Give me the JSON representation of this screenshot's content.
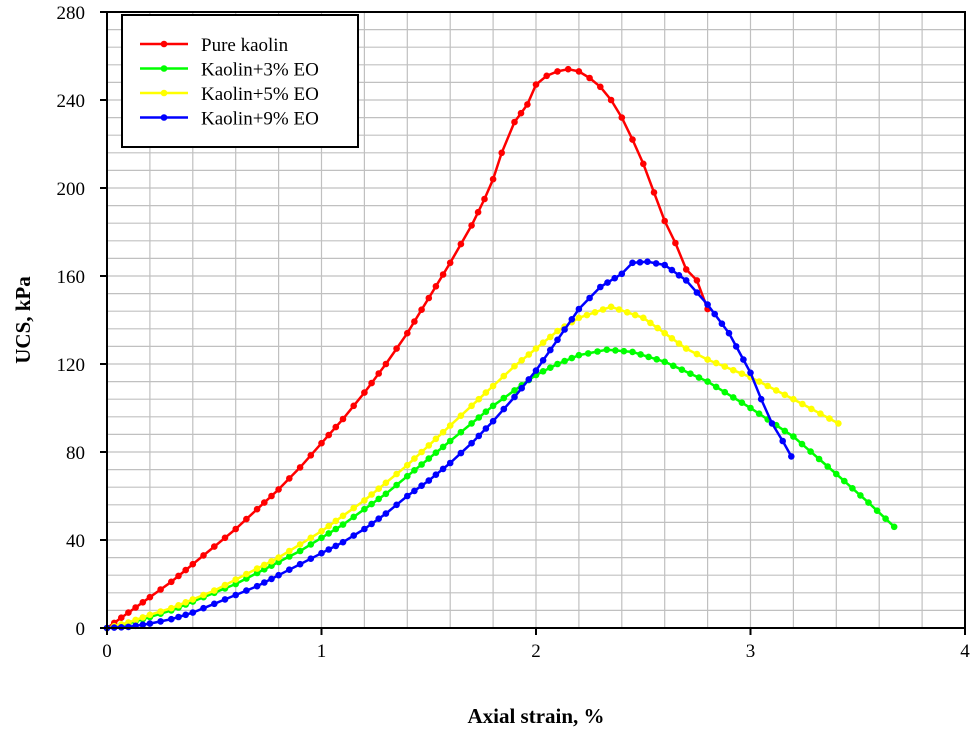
{
  "chart_data": {
    "type": "line",
    "title": "",
    "xlabel": "Axial strain, %",
    "ylabel": "UCS, kPa",
    "xlim": [
      0,
      4
    ],
    "ylim": [
      0,
      280
    ],
    "x_ticks": [
      0,
      1,
      2,
      3,
      4
    ],
    "y_ticks": [
      0,
      40,
      80,
      120,
      160,
      200,
      240,
      280
    ],
    "x_minor_step": 0.2,
    "y_minor_step": 8,
    "grid": true,
    "legend_position": "upper-left",
    "series": [
      {
        "name": "Pure kaolin",
        "color": "#ff0000",
        "x": [
          0,
          0.1,
          0.2,
          0.3,
          0.4,
          0.5,
          0.6,
          0.7,
          0.8,
          0.9,
          1.0,
          1.1,
          1.2,
          1.3,
          1.4,
          1.5,
          1.6,
          1.7,
          1.76,
          1.8,
          1.84,
          1.9,
          1.96,
          2.0,
          2.05,
          2.1,
          2.15,
          2.2,
          2.25,
          2.3,
          2.35,
          2.4,
          2.45,
          2.5,
          2.55,
          2.6,
          2.65,
          2.7,
          2.75,
          2.8
        ],
        "y": [
          0,
          7,
          14,
          21,
          29,
          37,
          45,
          54,
          63,
          73,
          84,
          95,
          107,
          120,
          134,
          150,
          166,
          183,
          195,
          204,
          216,
          230,
          238,
          247,
          251,
          253,
          254,
          253,
          250,
          246,
          240,
          232,
          222,
          211,
          198,
          185,
          175,
          163,
          158,
          145
        ]
      },
      {
        "name": "Kaolin+3% EO",
        "color": "#00ff00",
        "x": [
          0,
          0.1,
          0.2,
          0.3,
          0.4,
          0.5,
          0.6,
          0.7,
          0.8,
          0.9,
          1.0,
          1.1,
          1.2,
          1.3,
          1.4,
          1.5,
          1.6,
          1.7,
          1.8,
          1.9,
          2.0,
          2.1,
          2.2,
          2.33,
          2.45,
          2.6,
          2.8,
          3.0,
          3.2,
          3.4,
          3.55,
          3.67
        ],
        "y": [
          0,
          2,
          5,
          8,
          12,
          16,
          20,
          25,
          30,
          35,
          41,
          47,
          54,
          61,
          69,
          77,
          85,
          93,
          101,
          108,
          115,
          120,
          124,
          126.5,
          125.5,
          121,
          112,
          100,
          87,
          70,
          57,
          46
        ]
      },
      {
        "name": "Kaolin+5% EO",
        "color": "#ffff00",
        "x": [
          0,
          0.1,
          0.2,
          0.3,
          0.4,
          0.5,
          0.6,
          0.7,
          0.8,
          0.9,
          1.0,
          1.1,
          1.2,
          1.3,
          1.4,
          1.5,
          1.6,
          1.7,
          1.8,
          1.9,
          2.0,
          2.1,
          2.2,
          2.35,
          2.5,
          2.6,
          2.7,
          2.8,
          3.0,
          3.2,
          3.41
        ],
        "y": [
          0,
          2.5,
          6,
          9,
          13,
          17,
          22,
          27,
          32,
          38,
          44,
          51,
          58,
          66,
          74,
          83,
          92,
          101,
          110,
          119,
          127,
          135,
          141,
          146,
          141,
          134,
          127,
          122,
          114,
          104,
          93
        ]
      },
      {
        "name": "Kaolin+9% EO",
        "color": "#0000ff",
        "x": [
          0,
          0.1,
          0.2,
          0.3,
          0.4,
          0.5,
          0.6,
          0.7,
          0.8,
          0.9,
          1.0,
          1.1,
          1.2,
          1.3,
          1.4,
          1.5,
          1.6,
          1.7,
          1.8,
          1.9,
          2.0,
          2.1,
          2.2,
          2.3,
          2.4,
          2.45,
          2.52,
          2.6,
          2.7,
          2.8,
          2.9,
          3.0,
          3.05,
          3.1,
          3.15,
          3.19
        ],
        "y": [
          0,
          0.5,
          2,
          4,
          7,
          11,
          15,
          19,
          24,
          29,
          34,
          39,
          45,
          52,
          60,
          67,
          75,
          84,
          94,
          105,
          117,
          131,
          145,
          155,
          161,
          166,
          166.5,
          165,
          158,
          147,
          134,
          116,
          104,
          93,
          85,
          78
        ]
      }
    ]
  },
  "legend": {
    "items": [
      {
        "label": "Pure kaolin",
        "color": "#ff0000"
      },
      {
        "label": "Kaolin+3% EO",
        "color": "#00ff00"
      },
      {
        "label": "Kaolin+5% EO",
        "color": "#ffff00"
      },
      {
        "label": "Kaolin+9% EO",
        "color": "#0000ff"
      }
    ]
  },
  "axes": {
    "x_title": "Axial strain, %",
    "y_title": "UCS, kPa",
    "x_tick_labels": [
      "0",
      "1",
      "2",
      "3",
      "4"
    ],
    "y_tick_labels": [
      "0",
      "40",
      "80",
      "120",
      "160",
      "200",
      "240",
      "280"
    ]
  },
  "style": {
    "grid_color": "#c0c0c0",
    "axis_color": "#000000",
    "background": "#ffffff"
  }
}
